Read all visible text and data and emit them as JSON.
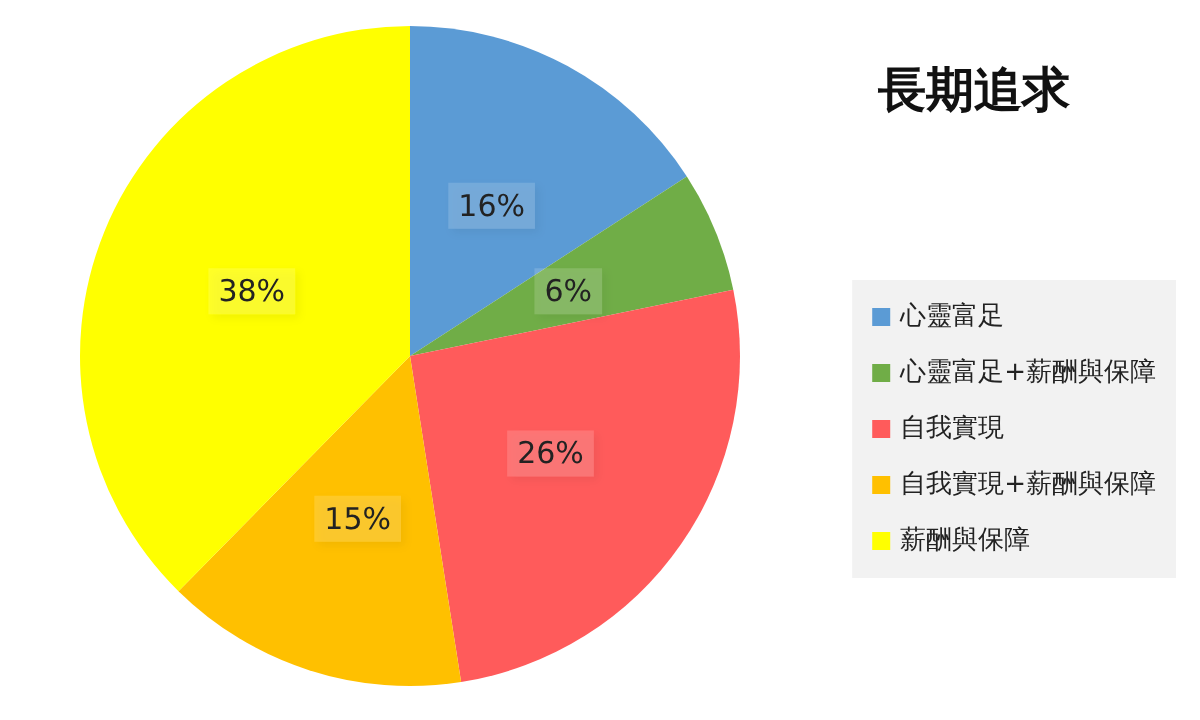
{
  "chart_data": {
    "type": "pie",
    "title": "長期追求",
    "categories": [
      "心靈富足",
      "心靈富足+薪酬與保障",
      "自我實現",
      "自我實現+薪酬與保障",
      "薪酬與保障"
    ],
    "values": [
      16,
      6,
      26,
      15,
      38
    ],
    "value_labels": [
      "16%",
      "6%",
      "26%",
      "15%",
      "38%"
    ],
    "colors": [
      "#5b9bd5",
      "#70ad47",
      "#ff5b5b",
      "#ffc000",
      "#ffff00"
    ],
    "legend": "right"
  }
}
